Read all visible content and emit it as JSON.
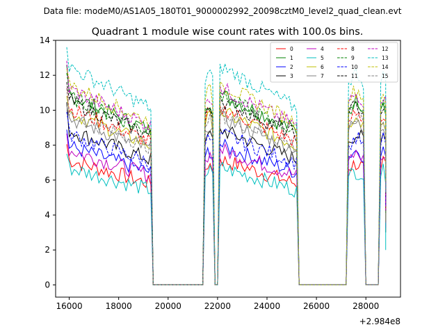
{
  "chart_data": {
    "type": "line",
    "suptitle": "Data file: modeM0/AS1A05_180T01_9000002992_20098cztM0_level2_quad_clean.evt",
    "title": "Quadrant 1 module wise count rates with 100.0s bins.",
    "xlabel": "",
    "ylabel": "",
    "x_offset_label": "+2.984e8",
    "xlim": [
      15450,
      29400
    ],
    "ylim": [
      -0.7,
      14.0
    ],
    "xticks": [
      16000,
      18000,
      20000,
      22000,
      24000,
      26000,
      28000
    ],
    "yticks": [
      0,
      2,
      4,
      6,
      8,
      10,
      12,
      14
    ],
    "legend_position": "top-right",
    "series": [
      {
        "name": "0",
        "color": "#ff0000",
        "dash": "solid",
        "level": 6.3
      },
      {
        "name": "1",
        "color": "#008000",
        "dash": "solid",
        "level": 9.6
      },
      {
        "name": "2",
        "color": "#0000ff",
        "dash": "solid",
        "level": 7.0
      },
      {
        "name": "3",
        "color": "#000000",
        "dash": "solid",
        "level": 7.8
      },
      {
        "name": "4",
        "color": "#bf00bf",
        "dash": "solid",
        "level": 6.8
      },
      {
        "name": "5",
        "color": "#00bfbf",
        "dash": "solid",
        "level": 5.9
      },
      {
        "name": "6",
        "color": "#bfbf00",
        "dash": "solid",
        "level": 8.7
      },
      {
        "name": "7",
        "color": "#808080",
        "dash": "solid",
        "level": 8.4
      },
      {
        "name": "8",
        "color": "#ff0000",
        "dash": "dashed",
        "level": 8.9
      },
      {
        "name": "9",
        "color": "#008000",
        "dash": "dashed",
        "level": 9.5
      },
      {
        "name": "10",
        "color": "#0000ff",
        "dash": "dashed",
        "level": 7.6
      },
      {
        "name": "11",
        "color": "#000000",
        "dash": "dashed",
        "level": 9.3
      },
      {
        "name": "12",
        "color": "#bf00bf",
        "dash": "dashed",
        "level": 9.9
      },
      {
        "name": "13",
        "color": "#00bfbf",
        "dash": "dashed",
        "level": 11.0
      },
      {
        "name": "14",
        "color": "#bfbf00",
        "dash": "dashed",
        "level": 10.1
      },
      {
        "name": "15",
        "color": "#808080",
        "dash": "dashed",
        "level": 8.6
      }
    ],
    "active_segments": [
      {
        "start": 15900,
        "end": 19300,
        "decay": true
      },
      {
        "start": 21500,
        "end": 21800,
        "decay": false
      },
      {
        "start": 22100,
        "end": 25200,
        "decay": true
      },
      {
        "start": 27300,
        "end": 27900,
        "decay": false
      },
      {
        "start": 28600,
        "end": 28800,
        "decay": false
      }
    ],
    "zero_level_start": 19400,
    "zero_level_end": 28800
  }
}
